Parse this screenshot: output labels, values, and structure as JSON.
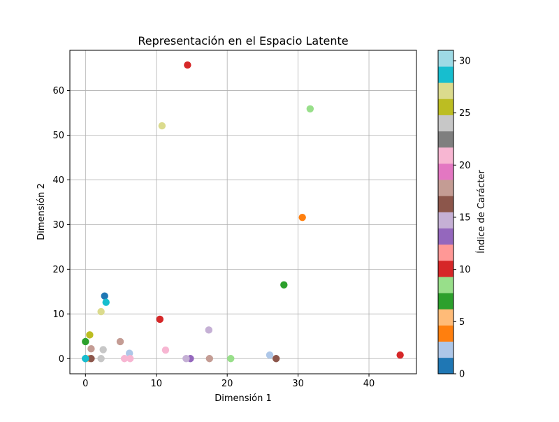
{
  "chart_data": {
    "type": "scatter",
    "title": "Representación en el Espacio Latente",
    "xlabel": "Dimensión 1",
    "ylabel": "Dimensión 2",
    "xlim": [
      -2.2,
      46.7
    ],
    "ylim": [
      -3.4,
      69.0
    ],
    "xticks": [
      0,
      10,
      20,
      30,
      40
    ],
    "yticks": [
      0,
      10,
      20,
      30,
      40,
      50,
      60
    ],
    "grid": true,
    "colorbar": {
      "label": "Índice de Carácter",
      "range": [
        0,
        31
      ],
      "ticks": [
        0,
        5,
        10,
        15,
        20,
        25,
        30
      ],
      "colormap": "tab20",
      "colors": [
        "#1f77b4",
        "#aec7e8",
        "#ff7f0e",
        "#ffbb78",
        "#2ca02c",
        "#98df8a",
        "#d62728",
        "#ff9896",
        "#9467bd",
        "#c5b0d5",
        "#8c564b",
        "#c49c94",
        "#e377c2",
        "#f7b6d2",
        "#7f7f7f",
        "#c7c7c7",
        "#bcbd22",
        "#dbdb8d",
        "#17becf",
        "#9edae5"
      ]
    },
    "points": [
      {
        "x": 0.0,
        "y": 0.0,
        "c": 0
      },
      {
        "x": 2.7,
        "y": 14.0,
        "c": 1
      },
      {
        "x": 6.2,
        "y": 1.2,
        "c": 2
      },
      {
        "x": 26.0,
        "y": 0.8,
        "c": 3
      },
      {
        "x": 30.6,
        "y": 31.6,
        "c": 4
      },
      {
        "x": 0.5,
        "y": 0.0,
        "c": 5
      },
      {
        "x": 0.0,
        "y": 3.8,
        "c": 7
      },
      {
        "x": 28.0,
        "y": 16.5,
        "c": 7
      },
      {
        "x": 20.5,
        "y": 0.0,
        "c": 9
      },
      {
        "x": 31.7,
        "y": 55.9,
        "c": 9
      },
      {
        "x": 10.5,
        "y": 8.8,
        "c": 10
      },
      {
        "x": 14.4,
        "y": 65.7,
        "c": 11
      },
      {
        "x": 44.4,
        "y": 0.8,
        "c": 11
      },
      {
        "x": 14.8,
        "y": 0.0,
        "c": 13
      },
      {
        "x": 14.2,
        "y": 0.0,
        "c": 15
      },
      {
        "x": 17.4,
        "y": 6.4,
        "c": 15
      },
      {
        "x": 0.8,
        "y": 0.0,
        "c": 16
      },
      {
        "x": 26.9,
        "y": 0.0,
        "c": 17
      },
      {
        "x": 17.5,
        "y": 0.0,
        "c": 18
      },
      {
        "x": 4.9,
        "y": 3.8,
        "c": 19
      },
      {
        "x": 0.8,
        "y": 2.2,
        "c": 19
      },
      {
        "x": 6.3,
        "y": 0.0,
        "c": 21
      },
      {
        "x": 5.5,
        "y": 0.0,
        "c": 22
      },
      {
        "x": 11.3,
        "y": 1.9,
        "c": 22
      },
      {
        "x": 2.2,
        "y": 0.0,
        "c": 24
      },
      {
        "x": 2.5,
        "y": 2.0,
        "c": 25
      },
      {
        "x": 0.6,
        "y": 5.3,
        "c": 27
      },
      {
        "x": 2.2,
        "y": 10.5,
        "c": 28
      },
      {
        "x": 10.8,
        "y": 52.1,
        "c": 28
      },
      {
        "x": 2.9,
        "y": 12.6,
        "c": 30
      },
      {
        "x": 0.0,
        "y": 0.0,
        "c": 30
      }
    ]
  }
}
